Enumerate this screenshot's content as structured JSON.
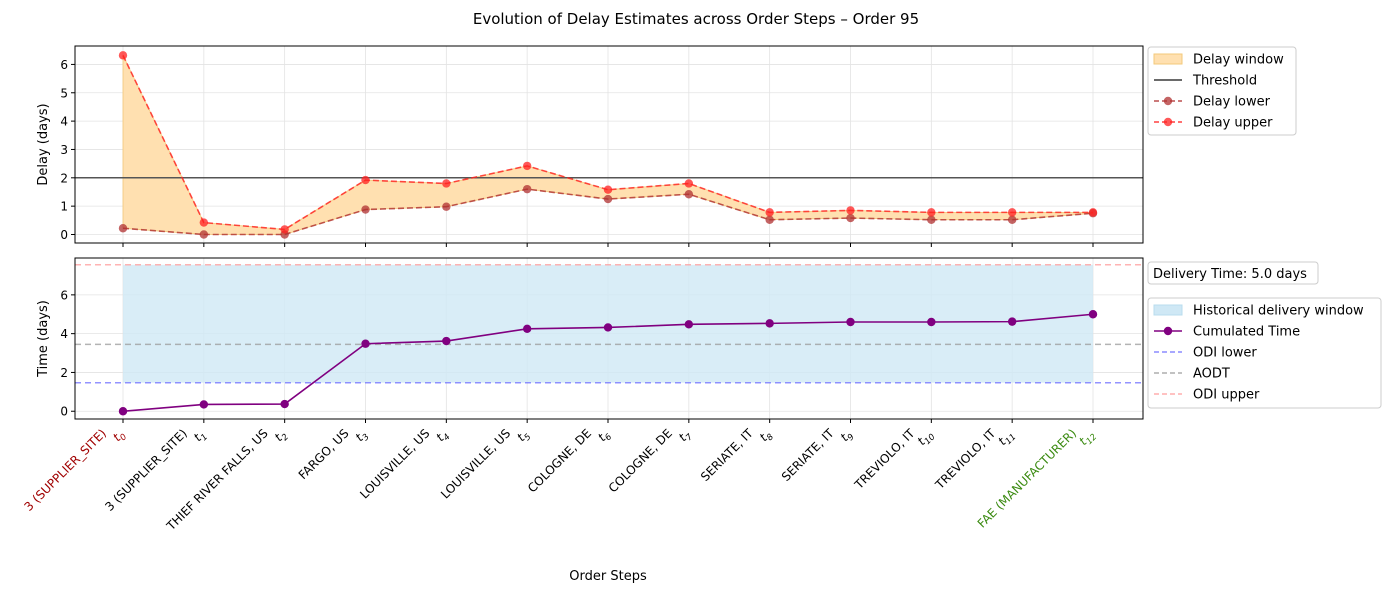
{
  "figure": {
    "title": "Evolution of Delay Estimates across Order Steps – Order 95",
    "xlabel": "Order Steps"
  },
  "steps": [
    {
      "name": "3 (SUPPLIER_SITE)",
      "sub": "0",
      "color": "#a00000"
    },
    {
      "name": "3 (SUPPLIER_SITE)",
      "sub": "1",
      "color": "#000000"
    },
    {
      "name": "THIEF RIVER FALLS, US",
      "sub": "2",
      "color": "#000000"
    },
    {
      "name": "FARGO, US",
      "sub": "3",
      "color": "#000000"
    },
    {
      "name": "LOUISVILLE, US",
      "sub": "4",
      "color": "#000000"
    },
    {
      "name": "LOUISVILLE, US",
      "sub": "5",
      "color": "#000000"
    },
    {
      "name": "COLOGNE, DE",
      "sub": "6",
      "color": "#000000"
    },
    {
      "name": "COLOGNE, DE",
      "sub": "7",
      "color": "#000000"
    },
    {
      "name": "SERIATE, IT",
      "sub": "8",
      "color": "#000000"
    },
    {
      "name": "SERIATE, IT",
      "sub": "9",
      "color": "#000000"
    },
    {
      "name": "TREVIOLO, IT",
      "sub": "10",
      "color": "#000000"
    },
    {
      "name": "TREVIOLO, IT",
      "sub": "11",
      "color": "#000000"
    },
    {
      "name": "FAE (MANUFACTURER)",
      "sub": "12",
      "color": "#3a8a10"
    }
  ],
  "chart_data": [
    {
      "type": "line",
      "ylabel": "Delay (days)",
      "ylim": [
        -0.3,
        6.65
      ],
      "yticks": [
        0,
        1,
        2,
        3,
        4,
        5,
        6
      ],
      "grid": true,
      "legend_position": "outside upper-right",
      "threshold": {
        "name": "Threshold",
        "value": 2.0,
        "color": "#555555"
      },
      "window": {
        "name": "Delay window",
        "color": "#ffe0b0",
        "edge": "#f3c97a"
      },
      "series": [
        {
          "name": "Delay lower",
          "color": "#b03030",
          "values": [
            0.22,
            0.0,
            0.0,
            0.88,
            0.98,
            1.6,
            1.25,
            1.42,
            0.52,
            0.58,
            0.52,
            0.52,
            0.75
          ]
        },
        {
          "name": "Delay upper",
          "color": "#ff2020",
          "values": [
            6.32,
            0.42,
            0.18,
            1.92,
            1.8,
            2.42,
            1.58,
            1.8,
            0.78,
            0.85,
            0.78,
            0.78,
            0.78
          ]
        }
      ]
    },
    {
      "type": "line",
      "ylabel": "Time (days)",
      "ylim": [
        -0.4,
        7.9
      ],
      "yticks": [
        0,
        2,
        4,
        6
      ],
      "grid": true,
      "legend_position": "outside upper-right",
      "annotation": "Delivery Time: 5.0 days",
      "band": {
        "name": "Historical delivery window",
        "from": 1.47,
        "to": 7.55,
        "color": "#cfe8f5"
      },
      "series": [
        {
          "name": "Cumulated Time",
          "color": "#800080",
          "values": [
            0.0,
            0.35,
            0.37,
            3.48,
            3.62,
            4.25,
            4.32,
            4.48,
            4.53,
            4.6,
            4.6,
            4.62,
            5.0
          ]
        }
      ],
      "reference_lines": [
        {
          "name": "ODI lower",
          "value": 1.47,
          "color": "#6f6fff"
        },
        {
          "name": "AODT",
          "value": 3.45,
          "color": "#999999"
        },
        {
          "name": "ODI upper",
          "value": 7.55,
          "color": "#ff9a9a"
        }
      ]
    }
  ]
}
